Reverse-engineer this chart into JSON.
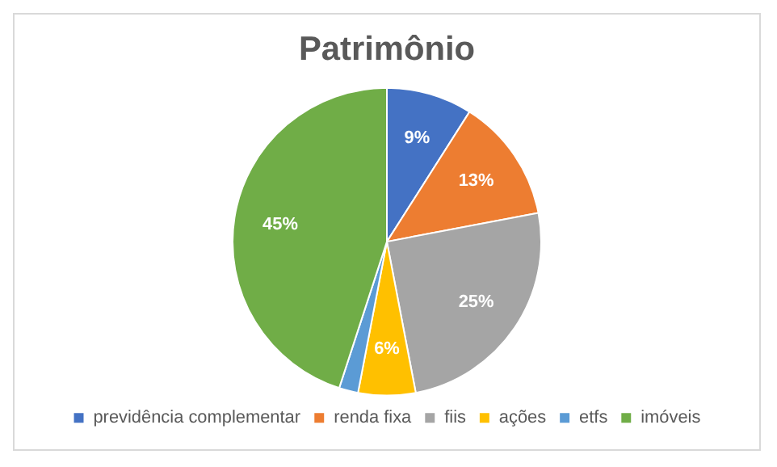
{
  "chart_data": {
    "type": "pie",
    "title": "Patrimônio",
    "categories": [
      "previdência complementar",
      "renda fixa",
      "fiis",
      "ações",
      "etfs",
      "imóveis"
    ],
    "values": [
      9,
      13,
      25,
      6,
      2,
      45
    ],
    "colors": [
      "#4472c4",
      "#ed7d31",
      "#a5a5a5",
      "#ffc000",
      "#5b9bd5",
      "#70ad47"
    ],
    "value_labels": [
      "9%",
      "13%",
      "25%",
      "6%",
      null,
      "45%"
    ],
    "legend": "bottom"
  }
}
